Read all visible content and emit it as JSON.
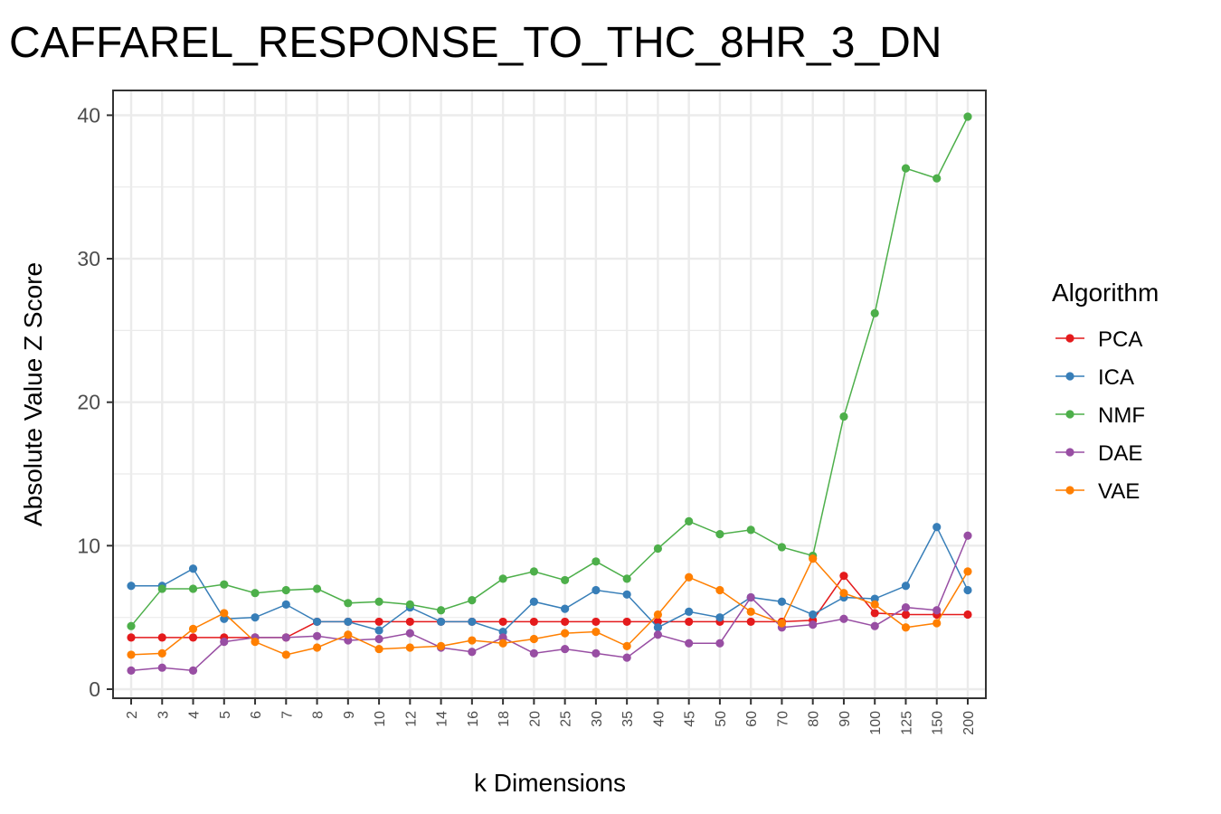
{
  "chart_data": {
    "type": "line",
    "title": "CAFFAREL_RESPONSE_TO_THC_8HR_3_DN",
    "xlabel": "k Dimensions",
    "ylabel": "Absolute Value Z Score",
    "x": [
      "2",
      "3",
      "4",
      "5",
      "6",
      "7",
      "8",
      "9",
      "10",
      "12",
      "14",
      "16",
      "18",
      "20",
      "25",
      "30",
      "35",
      "40",
      "45",
      "50",
      "60",
      "70",
      "80",
      "90",
      "100",
      "125",
      "150",
      "200"
    ],
    "ylim": [
      0,
      41
    ],
    "yticks": [
      "0",
      "10",
      "20",
      "30",
      "40"
    ],
    "grid": true,
    "legend": {
      "title": "Algorithm",
      "placement": "right"
    },
    "series": [
      {
        "name": "PCA",
        "color": "#e41a1c",
        "values": [
          3.6,
          3.6,
          3.6,
          3.6,
          3.6,
          3.6,
          4.7,
          4.7,
          4.7,
          4.7,
          4.7,
          4.7,
          4.7,
          4.7,
          4.7,
          4.7,
          4.7,
          4.7,
          4.7,
          4.7,
          4.7,
          4.7,
          4.8,
          7.9,
          5.3,
          5.2,
          5.2,
          5.2
        ]
      },
      {
        "name": "ICA",
        "color": "#377eb8",
        "values": [
          7.2,
          7.2,
          8.4,
          4.9,
          5.0,
          5.9,
          4.7,
          4.7,
          4.1,
          5.7,
          4.7,
          4.7,
          4.0,
          6.1,
          5.6,
          6.9,
          6.6,
          4.3,
          5.4,
          5.0,
          6.4,
          6.1,
          5.2,
          6.4,
          6.3,
          7.2,
          11.3,
          6.9
        ]
      },
      {
        "name": "NMF",
        "color": "#4daf4a",
        "values": [
          4.4,
          7.0,
          7.0,
          7.3,
          6.7,
          6.9,
          7.0,
          6.0,
          6.1,
          5.9,
          5.5,
          6.2,
          7.7,
          8.2,
          7.6,
          8.9,
          7.7,
          9.8,
          11.7,
          10.8,
          11.1,
          9.9,
          9.3,
          19.0,
          26.2,
          36.3,
          35.6,
          39.9
        ]
      },
      {
        "name": "DAE",
        "color": "#984ea3",
        "values": [
          1.3,
          1.5,
          1.3,
          3.3,
          3.6,
          3.6,
          3.7,
          3.4,
          3.5,
          3.9,
          2.9,
          2.6,
          3.6,
          2.5,
          2.8,
          2.5,
          2.2,
          3.8,
          3.2,
          3.2,
          6.4,
          4.3,
          4.5,
          4.9,
          4.4,
          5.7,
          5.5,
          10.7
        ]
      },
      {
        "name": "VAE",
        "color": "#ff7f00",
        "values": [
          2.4,
          2.5,
          4.2,
          5.3,
          3.3,
          2.4,
          2.9,
          3.8,
          2.8,
          2.9,
          3.0,
          3.4,
          3.2,
          3.5,
          3.9,
          4.0,
          3.0,
          5.2,
          7.8,
          6.9,
          5.4,
          4.6,
          9.1,
          6.7,
          5.9,
          4.3,
          4.6,
          8.2
        ]
      }
    ]
  }
}
